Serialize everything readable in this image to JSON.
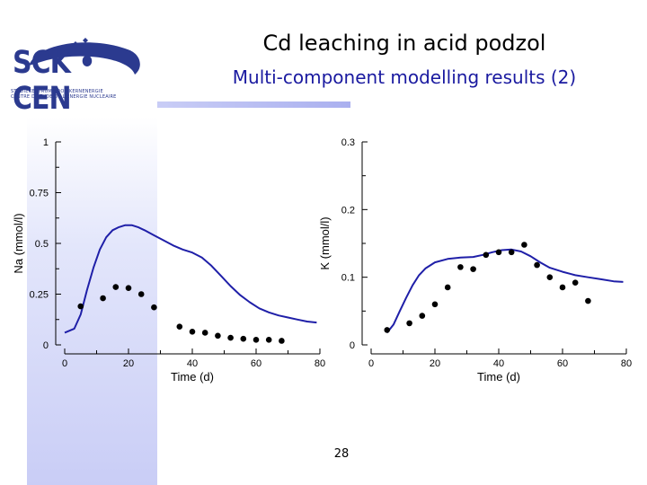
{
  "slide": {
    "title": "Cd leaching in acid podzol",
    "subtitle": "Multi-component modelling results (2)",
    "page_number": "28",
    "logo": {
      "text": "SCK • CEN",
      "line1": "STUDIECENTRUM VOOR KERNENERGIE",
      "line2": "CENTRE D'ETUDE DE L'ENERGIE NUCLEAIRE"
    },
    "colors": {
      "model_line": "#1f1fa8",
      "markers": "#000000",
      "logo": "#2b3a8f",
      "subtitle": "#1a1aa0"
    }
  },
  "chart_data": [
    {
      "type": "line",
      "xlabel": "Time (d)",
      "ylabel": "Na (mmol/l)",
      "xlim": [
        0,
        80
      ],
      "ylim": [
        0,
        1
      ],
      "xticks": [
        0,
        20,
        40,
        60,
        80
      ],
      "yticks": [
        0,
        0.25,
        0.5,
        0.75,
        1
      ],
      "ytick_labels": [
        "0",
        "0.25",
        "0.5",
        "0.75",
        "1"
      ],
      "series": [
        {
          "style": "line",
          "x": [
            0,
            3,
            5,
            7,
            9,
            11,
            13,
            15,
            17,
            19,
            21,
            23,
            25,
            28,
            31,
            34,
            37,
            40,
            43,
            46,
            49,
            52,
            55,
            58,
            61,
            64,
            67,
            70,
            73,
            76,
            79
          ],
          "y": [
            0.06,
            0.08,
            0.15,
            0.27,
            0.38,
            0.47,
            0.53,
            0.565,
            0.58,
            0.59,
            0.59,
            0.58,
            0.565,
            0.54,
            0.515,
            0.49,
            0.47,
            0.455,
            0.43,
            0.39,
            0.34,
            0.29,
            0.245,
            0.21,
            0.18,
            0.16,
            0.145,
            0.135,
            0.125,
            0.115,
            0.11
          ]
        },
        {
          "style": "markers",
          "x": [
            5,
            12,
            16,
            20,
            24,
            28,
            36,
            40,
            44,
            48,
            52,
            56,
            60,
            64,
            68
          ],
          "y": [
            0.19,
            0.23,
            0.285,
            0.28,
            0.25,
            0.185,
            0.09,
            0.065,
            0.06,
            0.045,
            0.035,
            0.03,
            0.025,
            0.025,
            0.02
          ]
        }
      ]
    },
    {
      "type": "line",
      "xlabel": "Time (d)",
      "ylabel": "K (mmol/l)",
      "xlim": [
        0,
        80
      ],
      "ylim": [
        0,
        0.3
      ],
      "xticks": [
        0,
        20,
        40,
        60,
        80
      ],
      "yticks": [
        0,
        0.1,
        0.2,
        0.3
      ],
      "ytick_labels": [
        "0",
        "0.1",
        "0.2",
        "0.3"
      ],
      "series": [
        {
          "style": "line",
          "x": [
            5,
            7,
            9,
            11,
            13,
            15,
            17,
            20,
            24,
            28,
            32,
            35,
            38,
            41,
            44,
            47,
            50,
            53,
            56,
            60,
            64,
            68,
            72,
            76,
            79
          ],
          "y": [
            0.018,
            0.03,
            0.05,
            0.07,
            0.088,
            0.103,
            0.113,
            0.122,
            0.127,
            0.129,
            0.13,
            0.133,
            0.137,
            0.14,
            0.141,
            0.138,
            0.131,
            0.122,
            0.114,
            0.108,
            0.103,
            0.1,
            0.097,
            0.094,
            0.093
          ]
        },
        {
          "style": "markers",
          "x": [
            5,
            12,
            16,
            20,
            24,
            28,
            32,
            36,
            40,
            44,
            48,
            52,
            56,
            60,
            64,
            68
          ],
          "y": [
            0.022,
            0.032,
            0.043,
            0.06,
            0.085,
            0.115,
            0.112,
            0.133,
            0.137,
            0.137,
            0.148,
            0.118,
            0.1,
            0.085,
            0.092,
            0.065
          ]
        }
      ]
    }
  ]
}
